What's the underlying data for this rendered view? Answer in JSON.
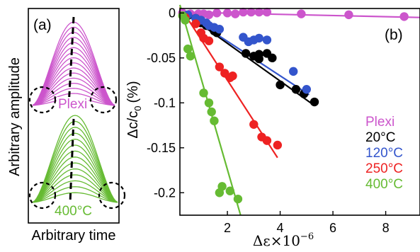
{
  "panel_a": {
    "label": "(a)",
    "ylabel": "Arbitrary amplitude",
    "xlabel": "Arbitrary time",
    "top_label": "Plexi",
    "bottom_label": "400°C",
    "colors": {
      "top": "#cc55cc",
      "bottom": "#66bb33"
    }
  },
  "chart_data": {
    "type": "scatter",
    "label": "(b)",
    "xlabel": "Δε×10",
    "xlabel_exponent": "−6",
    "ylabel": "Δc/c",
    "ylabel_sub": "0",
    "ylabel_unit": "(%)",
    "xlim": [
      0.2,
      9.3
    ],
    "ylim": [
      -0.225,
      0.005
    ],
    "xticks": [
      2,
      4,
      6,
      8
    ],
    "yticks": [
      0,
      -0.05,
      -0.1,
      -0.15,
      -0.2
    ],
    "ytick_labels": [
      "0",
      "-0.05",
      "-0.1",
      "-0.15",
      "-0.2"
    ],
    "legend_position": "right",
    "series": [
      {
        "name": "Plexi",
        "color": "#cc55cc",
        "points": [
          [
            0.3,
            0
          ],
          [
            0.6,
            -0.001
          ],
          [
            0.9,
            -0.001
          ],
          [
            1.1,
            -0.001
          ],
          [
            1.3,
            -0.002
          ],
          [
            1.6,
            0
          ],
          [
            2.0,
            0
          ],
          [
            2.3,
            -0.001
          ],
          [
            2.6,
            0.001
          ],
          [
            2.9,
            0.001
          ],
          [
            3.2,
            0.001
          ],
          [
            3.5,
            0.001
          ],
          [
            4.8,
            -0.001
          ],
          [
            6.6,
            -0.002
          ],
          [
            8.7,
            -0.004
          ]
        ],
        "fit": [
          [
            0.2,
            0.001
          ],
          [
            9.3,
            -0.005
          ]
        ]
      },
      {
        "name": "20°C",
        "color": "#000000",
        "points": [
          [
            0.5,
            -0.003
          ],
          [
            0.8,
            -0.006
          ],
          [
            1.0,
            -0.011
          ],
          [
            1.2,
            -0.014
          ],
          [
            1.4,
            -0.016
          ],
          [
            1.5,
            -0.02
          ],
          [
            1.6,
            -0.022
          ],
          [
            2.7,
            -0.045
          ],
          [
            3.0,
            -0.048
          ],
          [
            3.2,
            -0.046
          ],
          [
            3.5,
            -0.045
          ],
          [
            3.7,
            -0.05
          ],
          [
            3.2,
            -0.051
          ],
          [
            4.0,
            -0.08
          ],
          [
            4.6,
            -0.085
          ],
          [
            4.9,
            -0.09
          ],
          [
            5.3,
            -0.099
          ]
        ],
        "fit": [
          [
            0.2,
            0.004
          ],
          [
            5.3,
            -0.103
          ]
        ]
      },
      {
        "name": "120°C",
        "color": "#3355cc",
        "points": [
          [
            0.5,
            -0.002
          ],
          [
            0.8,
            -0.006
          ],
          [
            1.0,
            -0.008
          ],
          [
            1.2,
            -0.011
          ],
          [
            1.3,
            -0.014
          ],
          [
            1.5,
            -0.016
          ],
          [
            1.7,
            -0.018
          ],
          [
            2.6,
            -0.027
          ],
          [
            2.8,
            -0.032
          ],
          [
            3.0,
            -0.03
          ],
          [
            3.2,
            -0.028
          ],
          [
            3.5,
            -0.03
          ],
          [
            4.5,
            -0.065
          ],
          [
            5.0,
            -0.085
          ]
        ],
        "fit": [
          [
            0.2,
            0.003
          ],
          [
            5.1,
            -0.091
          ]
        ]
      },
      {
        "name": "250°C",
        "color": "#ee2222",
        "points": [
          [
            0.4,
            -0.005
          ],
          [
            0.8,
            -0.012
          ],
          [
            1.0,
            -0.022
          ],
          [
            1.1,
            -0.028
          ],
          [
            1.3,
            -0.031
          ],
          [
            1.7,
            -0.06
          ],
          [
            1.9,
            -0.067
          ],
          [
            2.1,
            -0.072
          ],
          [
            2.2,
            -0.07
          ],
          [
            3.0,
            -0.124
          ],
          [
            3.3,
            -0.138
          ],
          [
            3.5,
            -0.142
          ],
          [
            3.9,
            -0.147
          ]
        ],
        "fit": [
          [
            0.2,
            0.007
          ],
          [
            3.9,
            -0.161
          ]
        ]
      },
      {
        "name": "400°C",
        "color": "#66bb33",
        "points": [
          [
            0.3,
            -0.003
          ],
          [
            0.4,
            -0.008
          ],
          [
            0.5,
            -0.04
          ],
          [
            0.6,
            -0.048
          ],
          [
            1.1,
            -0.089
          ],
          [
            1.3,
            -0.1
          ],
          [
            1.4,
            -0.11
          ],
          [
            1.5,
            -0.12
          ],
          [
            1.7,
            -0.2
          ],
          [
            1.8,
            -0.193
          ],
          [
            2.1,
            -0.198
          ],
          [
            2.4,
            -0.207
          ]
        ],
        "fit": [
          [
            0.2,
            0.009
          ],
          [
            2.5,
            -0.225
          ]
        ]
      }
    ]
  }
}
